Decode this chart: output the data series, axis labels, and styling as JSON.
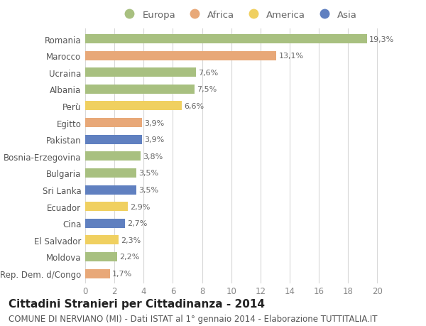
{
  "categories": [
    "Rep. Dem. d/Congo",
    "Moldova",
    "El Salvador",
    "Cina",
    "Ecuador",
    "Sri Lanka",
    "Bulgaria",
    "Bosnia-Erzegovina",
    "Pakistan",
    "Egitto",
    "Perù",
    "Albania",
    "Ucraina",
    "Marocco",
    "Romania"
  ],
  "values": [
    1.7,
    2.2,
    2.3,
    2.7,
    2.9,
    3.5,
    3.5,
    3.8,
    3.9,
    3.9,
    6.6,
    7.5,
    7.6,
    13.1,
    19.3
  ],
  "labels": [
    "1,7%",
    "2,2%",
    "2,3%",
    "2,7%",
    "2,9%",
    "3,5%",
    "3,5%",
    "3,8%",
    "3,9%",
    "3,9%",
    "6,6%",
    "7,5%",
    "7,6%",
    "13,1%",
    "19,3%"
  ],
  "continents": [
    "Africa",
    "Europa",
    "America",
    "Asia",
    "America",
    "Asia",
    "Europa",
    "Europa",
    "Asia",
    "Africa",
    "America",
    "Europa",
    "Europa",
    "Africa",
    "Europa"
  ],
  "colors": {
    "Europa": "#a8c080",
    "Africa": "#e8a878",
    "America": "#f0d060",
    "Asia": "#6080c0"
  },
  "legend_order": [
    "Europa",
    "Africa",
    "America",
    "Asia"
  ],
  "title": "Cittadini Stranieri per Cittadinanza - 2014",
  "subtitle": "COMUNE DI NERVIANO (MI) - Dati ISTAT al 1° gennaio 2014 - Elaborazione TUTTITALIA.IT",
  "xlim": [
    0,
    21
  ],
  "xticks": [
    0,
    2,
    4,
    6,
    8,
    10,
    12,
    14,
    16,
    18,
    20
  ],
  "background_color": "#ffffff",
  "grid_color": "#d8d8d8",
  "bar_height": 0.55,
  "title_fontsize": 11,
  "subtitle_fontsize": 8.5,
  "label_fontsize": 8,
  "tick_fontsize": 8.5,
  "legend_fontsize": 9.5
}
